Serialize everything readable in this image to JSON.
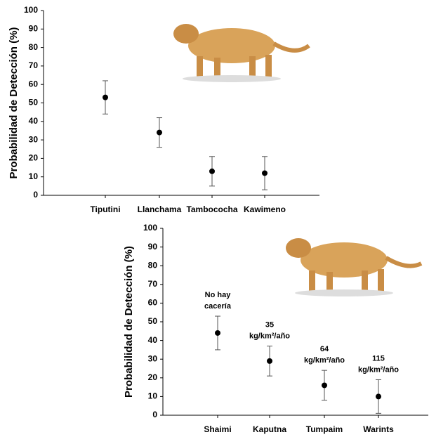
{
  "chart_data": [
    {
      "type": "errorbar",
      "ylabel": "Probabilidad de Detección (%)",
      "categories": [
        "Tiputini",
        "Llanchama",
        "Tambococha",
        "Kawimeno"
      ],
      "values": [
        53,
        34,
        13,
        12
      ],
      "errors": [
        9,
        8,
        8,
        9
      ],
      "color": "#000000",
      "ylim": [
        0,
        100
      ],
      "yticks": [
        0,
        10,
        20,
        30,
        40,
        50,
        60,
        70,
        80,
        90,
        100
      ]
    },
    {
      "type": "errorbar",
      "ylabel": "Probabilidad de Detección (%)",
      "categories": [
        "Shaimi",
        "Kaputna",
        "Tumpaim",
        "Warints"
      ],
      "values": [
        44,
        29,
        16,
        10
      ],
      "errors": [
        9,
        8,
        8,
        9
      ],
      "color": "#000000",
      "annotations": [
        [
          "No hay",
          "cacería"
        ],
        [
          "35",
          "kg/km²/año"
        ],
        [
          "64",
          "kg/km²/año"
        ],
        [
          "115",
          "kg/km²/año"
        ]
      ],
      "ylim": [
        0,
        100
      ],
      "yticks": [
        0,
        10,
        20,
        30,
        40,
        50,
        60,
        70,
        80,
        90,
        100
      ]
    }
  ]
}
